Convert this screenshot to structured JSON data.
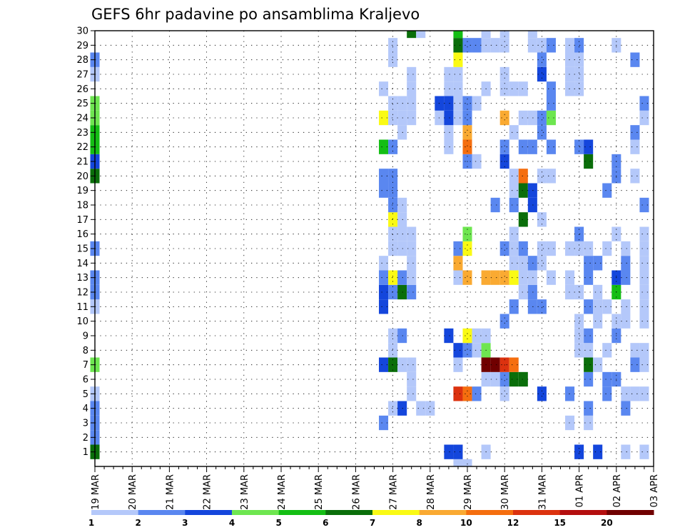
{
  "chart_data": {
    "type": "heatmap",
    "title": "GEFS 6hr padavine po ansamblima Kraljevo",
    "x_tick_labels": [
      "19 MAR",
      "20 MAR",
      "21 MAR",
      "22 MAR",
      "23 MAR",
      "24 MAR",
      "25 MAR",
      "26 MAR",
      "27 MAR",
      "28 MAR",
      "29 MAR",
      "30 MAR",
      "31 MAR",
      "01 APR",
      "02 APR",
      "03 APR"
    ],
    "y_tick_labels": [
      "1",
      "2",
      "3",
      "4",
      "5",
      "6",
      "7",
      "8",
      "9",
      "10",
      "11",
      "12",
      "13",
      "14",
      "15",
      "16",
      "17",
      "18",
      "19",
      "20",
      "21",
      "22",
      "23",
      "24",
      "25",
      "26",
      "27",
      "28",
      "29",
      "30"
    ],
    "ylim": [
      1,
      30
    ],
    "x_steps_total": 60,
    "grid": true,
    "legend_position": "bottom",
    "colorbar": {
      "bounds": [
        "1",
        "2",
        "3",
        "4",
        "5",
        "6",
        "7",
        "8",
        "10",
        "12",
        "15",
        "20"
      ],
      "colors": [
        "#b4c8fa",
        "#5a87f0",
        "#1446dc",
        "#6ee650",
        "#14be14",
        "#0a6e0a",
        "#fafa14",
        "#faaa32",
        "#f56e0f",
        "#dc320f",
        "#b40f0f",
        "#700000"
      ]
    },
    "note_cells": "cells: [member, time_step_index (6h steps from 19 MAR 00z), class_index into colorbar.colors]",
    "cells": [
      [
        1,
        0,
        5
      ],
      [
        2,
        0,
        1
      ],
      [
        3,
        0,
        1
      ],
      [
        4,
        0,
        1
      ],
      [
        5,
        0,
        0
      ],
      [
        7,
        0,
        3
      ],
      [
        11,
        0,
        0
      ],
      [
        12,
        0,
        1
      ],
      [
        13,
        0,
        1
      ],
      [
        15,
        0,
        1
      ],
      [
        20,
        0,
        5
      ],
      [
        21,
        0,
        2
      ],
      [
        22,
        0,
        4
      ],
      [
        23,
        0,
        4
      ],
      [
        24,
        0,
        3
      ],
      [
        25,
        0,
        3
      ],
      [
        27,
        0,
        0
      ],
      [
        28,
        0,
        1
      ],
      [
        3,
        31,
        1
      ],
      [
        7,
        31,
        2
      ],
      [
        11,
        31,
        2
      ],
      [
        12,
        31,
        2
      ],
      [
        13,
        31,
        1
      ],
      [
        14,
        31,
        0
      ],
      [
        19,
        31,
        1
      ],
      [
        20,
        31,
        1
      ],
      [
        22,
        31,
        4
      ],
      [
        24,
        31,
        6
      ],
      [
        26,
        31,
        0
      ],
      [
        4,
        32,
        0
      ],
      [
        7,
        32,
        5
      ],
      [
        8,
        32,
        0
      ],
      [
        9,
        32,
        0
      ],
      [
        12,
        32,
        1
      ],
      [
        13,
        32,
        6
      ],
      [
        15,
        32,
        0
      ],
      [
        16,
        32,
        0
      ],
      [
        17,
        32,
        6
      ],
      [
        18,
        32,
        1
      ],
      [
        19,
        32,
        1
      ],
      [
        20,
        32,
        1
      ],
      [
        22,
        32,
        1
      ],
      [
        24,
        32,
        0
      ],
      [
        25,
        32,
        0
      ],
      [
        28,
        32,
        0
      ],
      [
        29,
        32,
        0
      ],
      [
        4,
        33,
        2
      ],
      [
        7,
        33,
        0
      ],
      [
        9,
        33,
        1
      ],
      [
        12,
        33,
        5
      ],
      [
        13,
        33,
        1
      ],
      [
        15,
        33,
        0
      ],
      [
        16,
        33,
        0
      ],
      [
        17,
        33,
        0
      ],
      [
        18,
        33,
        0
      ],
      [
        23,
        33,
        0
      ],
      [
        24,
        33,
        0
      ],
      [
        25,
        33,
        0
      ],
      [
        5,
        34,
        0
      ],
      [
        6,
        34,
        0
      ],
      [
        7,
        34,
        0
      ],
      [
        12,
        34,
        1
      ],
      [
        13,
        34,
        0
      ],
      [
        14,
        34,
        0
      ],
      [
        15,
        34,
        0
      ],
      [
        16,
        34,
        0
      ],
      [
        24,
        34,
        0
      ],
      [
        25,
        34,
        0
      ],
      [
        26,
        34,
        0
      ],
      [
        27,
        34,
        0
      ],
      [
        30,
        34,
        5
      ],
      [
        4,
        35,
        0
      ],
      [
        30,
        35,
        0
      ],
      [
        4,
        36,
        0
      ],
      [
        24,
        37,
        0
      ],
      [
        25,
        37,
        2
      ],
      [
        1,
        38,
        2
      ],
      [
        9,
        38,
        2
      ],
      [
        22,
        38,
        0
      ],
      [
        23,
        38,
        0
      ],
      [
        24,
        38,
        2
      ],
      [
        25,
        38,
        2
      ],
      [
        26,
        38,
        0
      ],
      [
        27,
        38,
        0
      ],
      [
        0,
        39,
        0
      ],
      [
        1,
        39,
        2
      ],
      [
        5,
        39,
        9
      ],
      [
        7,
        39,
        0
      ],
      [
        8,
        39,
        2
      ],
      [
        13,
        39,
        0
      ],
      [
        14,
        39,
        7
      ],
      [
        15,
        39,
        1
      ],
      [
        24,
        39,
        0
      ],
      [
        25,
        39,
        0
      ],
      [
        26,
        39,
        0
      ],
      [
        27,
        39,
        0
      ],
      [
        28,
        39,
        6
      ],
      [
        29,
        39,
        5
      ],
      [
        30,
        39,
        4
      ],
      [
        0,
        40,
        0
      ],
      [
        5,
        40,
        8
      ],
      [
        8,
        40,
        1
      ],
      [
        9,
        40,
        6
      ],
      [
        13,
        40,
        7
      ],
      [
        15,
        40,
        6
      ],
      [
        16,
        40,
        3
      ],
      [
        21,
        40,
        1
      ],
      [
        22,
        40,
        8
      ],
      [
        23,
        40,
        7
      ],
      [
        24,
        40,
        1
      ],
      [
        25,
        40,
        1
      ],
      [
        29,
        40,
        1
      ],
      [
        5,
        41,
        1
      ],
      [
        8,
        41,
        0
      ],
      [
        9,
        41,
        0
      ],
      [
        21,
        41,
        0
      ],
      [
        25,
        41,
        0
      ],
      [
        29,
        41,
        1
      ],
      [
        1,
        42,
        0
      ],
      [
        6,
        42,
        0
      ],
      [
        7,
        42,
        11
      ],
      [
        8,
        42,
        3
      ],
      [
        9,
        42,
        0
      ],
      [
        13,
        42,
        7
      ],
      [
        26,
        42,
        0
      ],
      [
        29,
        42,
        0
      ],
      [
        30,
        42,
        0
      ],
      [
        6,
        43,
        0
      ],
      [
        7,
        43,
        11
      ],
      [
        13,
        43,
        7
      ],
      [
        18,
        43,
        1
      ],
      [
        29,
        43,
        0
      ],
      [
        5,
        44,
        0
      ],
      [
        6,
        44,
        1
      ],
      [
        7,
        44,
        9
      ],
      [
        10,
        44,
        1
      ],
      [
        13,
        44,
        7
      ],
      [
        15,
        44,
        1
      ],
      [
        21,
        44,
        2
      ],
      [
        22,
        44,
        1
      ],
      [
        24,
        44,
        7
      ],
      [
        26,
        44,
        0
      ],
      [
        27,
        44,
        0
      ],
      [
        29,
        44,
        0
      ],
      [
        30,
        44,
        0
      ],
      [
        6,
        45,
        5
      ],
      [
        7,
        45,
        8
      ],
      [
        11,
        45,
        1
      ],
      [
        13,
        45,
        6
      ],
      [
        14,
        45,
        0
      ],
      [
        15,
        45,
        0
      ],
      [
        16,
        45,
        0
      ],
      [
        18,
        45,
        1
      ],
      [
        19,
        45,
        0
      ],
      [
        20,
        45,
        0
      ],
      [
        23,
        45,
        0
      ],
      [
        26,
        45,
        0
      ],
      [
        6,
        46,
        5
      ],
      [
        12,
        46,
        0
      ],
      [
        13,
        46,
        0
      ],
      [
        14,
        46,
        0
      ],
      [
        15,
        46,
        1
      ],
      [
        17,
        46,
        5
      ],
      [
        19,
        46,
        5
      ],
      [
        20,
        46,
        8
      ],
      [
        22,
        46,
        1
      ],
      [
        24,
        46,
        0
      ],
      [
        26,
        46,
        0
      ],
      [
        11,
        47,
        1
      ],
      [
        12,
        47,
        1
      ],
      [
        13,
        47,
        0
      ],
      [
        14,
        47,
        1
      ],
      [
        18,
        47,
        2
      ],
      [
        19,
        47,
        2
      ],
      [
        22,
        47,
        1
      ],
      [
        24,
        47,
        0
      ],
      [
        29,
        47,
        0
      ],
      [
        30,
        47,
        0
      ],
      [
        5,
        48,
        2
      ],
      [
        11,
        48,
        1
      ],
      [
        14,
        48,
        0
      ],
      [
        15,
        48,
        0
      ],
      [
        17,
        48,
        0
      ],
      [
        20,
        48,
        0
      ],
      [
        23,
        48,
        1
      ],
      [
        24,
        48,
        1
      ],
      [
        27,
        48,
        2
      ],
      [
        28,
        48,
        1
      ],
      [
        29,
        48,
        0
      ],
      [
        13,
        49,
        0
      ],
      [
        15,
        49,
        0
      ],
      [
        20,
        49,
        0
      ],
      [
        22,
        49,
        1
      ],
      [
        24,
        49,
        3
      ],
      [
        25,
        49,
        1
      ],
      [
        26,
        49,
        1
      ],
      [
        29,
        49,
        1
      ],
      [
        3,
        51,
        0
      ],
      [
        5,
        51,
        1
      ],
      [
        12,
        51,
        0
      ],
      [
        13,
        51,
        0
      ],
      [
        15,
        51,
        0
      ],
      [
        26,
        51,
        0
      ],
      [
        27,
        51,
        0
      ],
      [
        28,
        51,
        0
      ],
      [
        29,
        51,
        0
      ],
      [
        1,
        52,
        2
      ],
      [
        8,
        52,
        0
      ],
      [
        9,
        52,
        0
      ],
      [
        10,
        52,
        0
      ],
      [
        12,
        52,
        0
      ],
      [
        15,
        52,
        0
      ],
      [
        16,
        52,
        1
      ],
      [
        22,
        52,
        1
      ],
      [
        26,
        52,
        0
      ],
      [
        27,
        52,
        0
      ],
      [
        28,
        52,
        0
      ],
      [
        29,
        52,
        1
      ],
      [
        3,
        53,
        0
      ],
      [
        4,
        53,
        1
      ],
      [
        6,
        53,
        1
      ],
      [
        7,
        53,
        5
      ],
      [
        8,
        53,
        0
      ],
      [
        9,
        53,
        1
      ],
      [
        11,
        53,
        1
      ],
      [
        13,
        53,
        1
      ],
      [
        14,
        53,
        1
      ],
      [
        15,
        53,
        0
      ],
      [
        21,
        53,
        5
      ],
      [
        22,
        53,
        2
      ],
      [
        1,
        54,
        2
      ],
      [
        7,
        54,
        0
      ],
      [
        10,
        54,
        0
      ],
      [
        11,
        54,
        0
      ],
      [
        12,
        54,
        0
      ],
      [
        14,
        54,
        1
      ],
      [
        5,
        55,
        1
      ],
      [
        6,
        55,
        1
      ],
      [
        8,
        55,
        0
      ],
      [
        11,
        55,
        0
      ],
      [
        15,
        55,
        0
      ],
      [
        19,
        55,
        1
      ],
      [
        6,
        56,
        1
      ],
      [
        9,
        56,
        1
      ],
      [
        10,
        56,
        0
      ],
      [
        12,
        56,
        4
      ],
      [
        13,
        56,
        2
      ],
      [
        16,
        56,
        0
      ],
      [
        20,
        56,
        1
      ],
      [
        21,
        56,
        1
      ],
      [
        29,
        56,
        0
      ],
      [
        1,
        57,
        0
      ],
      [
        4,
        57,
        1
      ],
      [
        5,
        57,
        0
      ],
      [
        10,
        57,
        0
      ],
      [
        11,
        57,
        0
      ],
      [
        13,
        57,
        1
      ],
      [
        14,
        57,
        1
      ],
      [
        15,
        57,
        0
      ],
      [
        5,
        58,
        0
      ],
      [
        7,
        58,
        1
      ],
      [
        8,
        58,
        0
      ],
      [
        20,
        58,
        0
      ],
      [
        22,
        58,
        0
      ],
      [
        23,
        58,
        1
      ],
      [
        28,
        58,
        1
      ],
      [
        1,
        59,
        0
      ],
      [
        5,
        59,
        0
      ],
      [
        7,
        59,
        0
      ],
      [
        8,
        59,
        0
      ],
      [
        10,
        59,
        0
      ],
      [
        11,
        59,
        0
      ],
      [
        12,
        59,
        0
      ],
      [
        13,
        59,
        0
      ],
      [
        14,
        59,
        0
      ],
      [
        15,
        59,
        0
      ],
      [
        16,
        59,
        0
      ],
      [
        18,
        59,
        1
      ],
      [
        24,
        59,
        0
      ],
      [
        25,
        59,
        1
      ]
    ]
  }
}
